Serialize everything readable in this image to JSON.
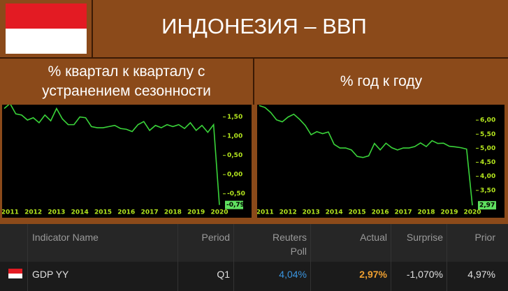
{
  "header": {
    "title": "ИНДОНЕЗИЯ – ВВП"
  },
  "chart_data": [
    {
      "type": "line",
      "title": "% квартал к кварталу с устранением сезонности",
      "color": "#3ad43a",
      "categories": [
        null,
        "2011",
        null,
        null,
        null,
        "2012",
        null,
        null,
        null,
        "2013",
        null,
        null,
        null,
        "2014",
        null,
        null,
        null,
        "2015",
        null,
        null,
        null,
        "2016",
        null,
        null,
        null,
        "2017",
        null,
        null,
        null,
        "2018",
        null,
        null,
        null,
        "2019",
        null,
        null,
        null,
        "2020"
      ],
      "values": [
        1.72,
        1.85,
        1.58,
        1.55,
        1.42,
        1.48,
        1.35,
        1.55,
        1.4,
        1.72,
        1.45,
        1.3,
        1.3,
        1.5,
        1.48,
        1.25,
        1.22,
        1.22,
        1.25,
        1.28,
        1.2,
        1.18,
        1.12,
        1.3,
        1.38,
        1.15,
        1.28,
        1.22,
        1.3,
        1.25,
        1.3,
        1.2,
        1.35,
        1.15,
        1.28,
        1.1,
        1.3,
        -0.79
      ],
      "value_labels": [
        null,
        null,
        null,
        null,
        null,
        null,
        null,
        null,
        null,
        null,
        null,
        null,
        null,
        null,
        null,
        null,
        null,
        null,
        null,
        null,
        null,
        null,
        null,
        null,
        null,
        null,
        null,
        null,
        null,
        null,
        null,
        null,
        null,
        null,
        null,
        null,
        null,
        "-0,79"
      ],
      "ylim": [
        -0.85,
        1.82
      ],
      "yticks": [
        {
          "value": 1.5,
          "label": "1,50"
        },
        {
          "value": 1.0,
          "label": "1,00"
        },
        {
          "value": 0.5,
          "label": "0,50"
        },
        {
          "value": 0.0,
          "label": "0,00"
        },
        {
          "value": -0.5,
          "label": "-0,50"
        }
      ]
    },
    {
      "type": "line",
      "title": "% год к году",
      "color": "#3ad43a",
      "categories": [
        null,
        "2011",
        null,
        null,
        null,
        "2012",
        null,
        null,
        null,
        "2013",
        null,
        null,
        null,
        "2014",
        null,
        null,
        null,
        "2015",
        null,
        null,
        null,
        "2016",
        null,
        null,
        null,
        "2017",
        null,
        null,
        null,
        "2018",
        null,
        null,
        null,
        "2019",
        null,
        null,
        null,
        "2020"
      ],
      "values": [
        6.52,
        6.45,
        6.27,
        6.01,
        5.94,
        6.11,
        6.21,
        6.03,
        5.81,
        5.48,
        5.59,
        5.52,
        5.58,
        5.14,
        5.01,
        5.01,
        4.94,
        4.71,
        4.67,
        4.73,
        5.17,
        4.94,
        5.18,
        5.02,
        4.94,
        5.01,
        5.01,
        5.06,
        5.19,
        5.06,
        5.27,
        5.17,
        5.18,
        5.07,
        5.05,
        5.02,
        4.97,
        2.97
      ],
      "value_labels": [
        null,
        null,
        null,
        null,
        null,
        null,
        null,
        null,
        null,
        null,
        null,
        null,
        null,
        null,
        null,
        null,
        null,
        null,
        null,
        null,
        null,
        null,
        null,
        null,
        null,
        null,
        null,
        null,
        null,
        null,
        null,
        null,
        null,
        null,
        null,
        null,
        null,
        "2,97"
      ],
      "ylim": [
        2.9,
        6.55
      ],
      "yticks": [
        {
          "value": 6.0,
          "label": "6,00"
        },
        {
          "value": 5.5,
          "label": "5,50"
        },
        {
          "value": 5.0,
          "label": "5,00"
        },
        {
          "value": 4.5,
          "label": "4,50"
        },
        {
          "value": 4.0,
          "label": "4,00"
        },
        {
          "value": 3.5,
          "label": "3,50"
        }
      ]
    }
  ],
  "table": {
    "headers": [
      "Indicator Name",
      "Period",
      "Reuters Poll",
      "Actual",
      "Surprise",
      "Prior"
    ],
    "rows": [
      [
        "GDP YY",
        "Q1",
        "4,04%",
        "2,97%",
        "-1,070%",
        "4,97%"
      ]
    ]
  }
}
